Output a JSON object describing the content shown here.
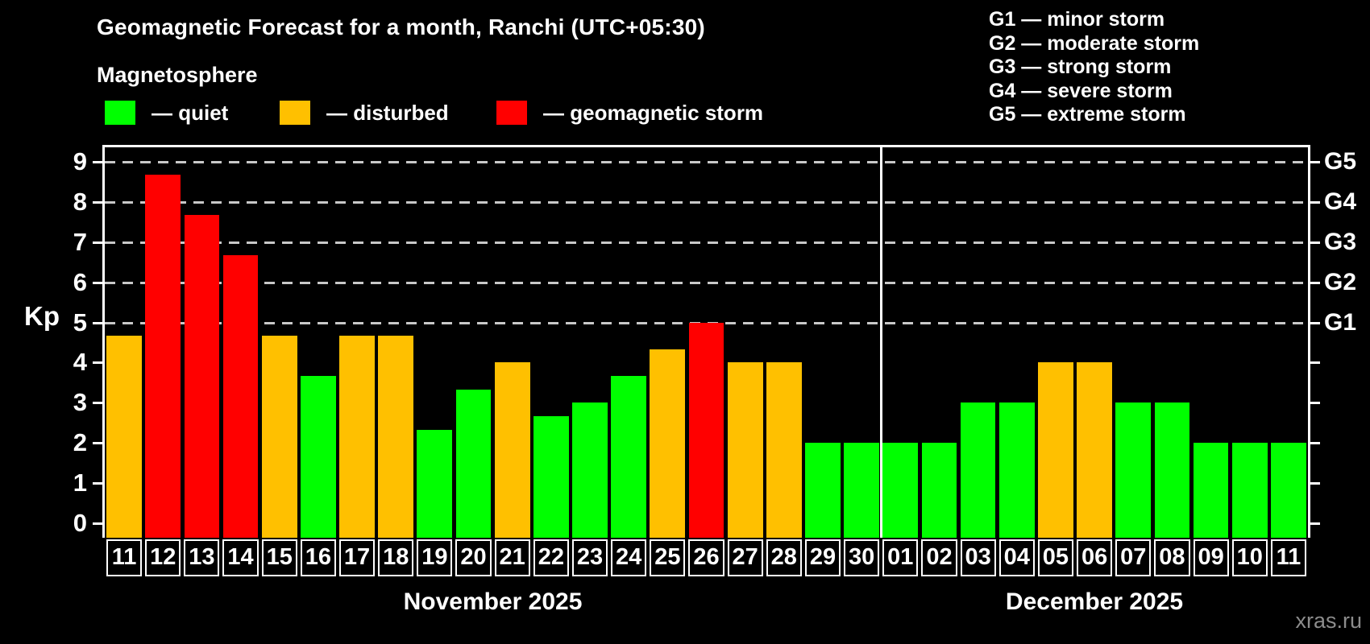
{
  "header": {
    "title": "Geomagnetic Forecast for a month, Ranchi (UTC+05:30)",
    "subtitle": "Magnetosphere"
  },
  "footer": {
    "watermark": "xras.ru"
  },
  "chart_data": {
    "type": "bar",
    "title": "Geomagnetic Forecast for a month, Ranchi (UTC+05:30)",
    "subtitle": "Magnetosphere",
    "ylabel": "Kp",
    "ylim": [
      0,
      9
    ],
    "yticks": [
      0,
      1,
      2,
      3,
      4,
      5,
      6,
      7,
      8,
      9
    ],
    "grid_levels": [
      5,
      6,
      7,
      8,
      9
    ],
    "grid_style": "dashed",
    "colors": {
      "quiet": "#00ff00",
      "disturbed": "#ffc000",
      "storm": "#ff0000"
    },
    "kp_legend": {
      "items": [
        {
          "key": "quiet",
          "label": "— quiet",
          "color": "#00ff00"
        },
        {
          "key": "disturbed",
          "label": "— disturbed",
          "color": "#ffc000"
        },
        {
          "key": "storm",
          "label": "— geomagnetic storm",
          "color": "#ff0000"
        }
      ]
    },
    "g_legend_lines": [
      "G1 — minor storm",
      "G2 — moderate storm",
      "G3 — strong storm",
      "G4 — severe storm",
      "G5 — extreme storm"
    ],
    "right_axis_labels": [
      {
        "kp": 5,
        "label": "G1"
      },
      {
        "kp": 6,
        "label": "G2"
      },
      {
        "kp": 7,
        "label": "G3"
      },
      {
        "kp": 8,
        "label": "G4"
      },
      {
        "kp": 9,
        "label": "G5"
      }
    ],
    "months": [
      {
        "label": "November 2025",
        "days_count": 20
      },
      {
        "label": "December 2025",
        "days_count": 11
      }
    ],
    "days": [
      {
        "day": "11",
        "kp": 4.67,
        "state": "disturbed"
      },
      {
        "day": "12",
        "kp": 8.67,
        "state": "storm"
      },
      {
        "day": "13",
        "kp": 7.67,
        "state": "storm"
      },
      {
        "day": "14",
        "kp": 6.67,
        "state": "storm"
      },
      {
        "day": "15",
        "kp": 4.67,
        "state": "disturbed"
      },
      {
        "day": "16",
        "kp": 3.67,
        "state": "quiet"
      },
      {
        "day": "17",
        "kp": 4.67,
        "state": "disturbed"
      },
      {
        "day": "18",
        "kp": 4.67,
        "state": "disturbed"
      },
      {
        "day": "19",
        "kp": 2.33,
        "state": "quiet"
      },
      {
        "day": "20",
        "kp": 3.33,
        "state": "quiet"
      },
      {
        "day": "21",
        "kp": 4.0,
        "state": "disturbed"
      },
      {
        "day": "22",
        "kp": 2.67,
        "state": "quiet"
      },
      {
        "day": "23",
        "kp": 3.0,
        "state": "quiet"
      },
      {
        "day": "24",
        "kp": 3.67,
        "state": "quiet"
      },
      {
        "day": "25",
        "kp": 4.33,
        "state": "disturbed"
      },
      {
        "day": "26",
        "kp": 5.0,
        "state": "storm"
      },
      {
        "day": "27",
        "kp": 4.0,
        "state": "disturbed"
      },
      {
        "day": "28",
        "kp": 4.0,
        "state": "disturbed"
      },
      {
        "day": "29",
        "kp": 2.0,
        "state": "quiet"
      },
      {
        "day": "30",
        "kp": 2.0,
        "state": "quiet"
      },
      {
        "day": "01",
        "kp": 2.0,
        "state": "quiet",
        "month_start": true
      },
      {
        "day": "02",
        "kp": 2.0,
        "state": "quiet"
      },
      {
        "day": "03",
        "kp": 3.0,
        "state": "quiet"
      },
      {
        "day": "04",
        "kp": 3.0,
        "state": "quiet"
      },
      {
        "day": "05",
        "kp": 4.0,
        "state": "disturbed"
      },
      {
        "day": "06",
        "kp": 4.0,
        "state": "disturbed"
      },
      {
        "day": "07",
        "kp": 3.0,
        "state": "quiet"
      },
      {
        "day": "08",
        "kp": 3.0,
        "state": "quiet"
      },
      {
        "day": "09",
        "kp": 2.0,
        "state": "quiet"
      },
      {
        "day": "10",
        "kp": 2.0,
        "state": "quiet"
      },
      {
        "day": "11",
        "kp": 2.0,
        "state": "quiet"
      }
    ]
  }
}
